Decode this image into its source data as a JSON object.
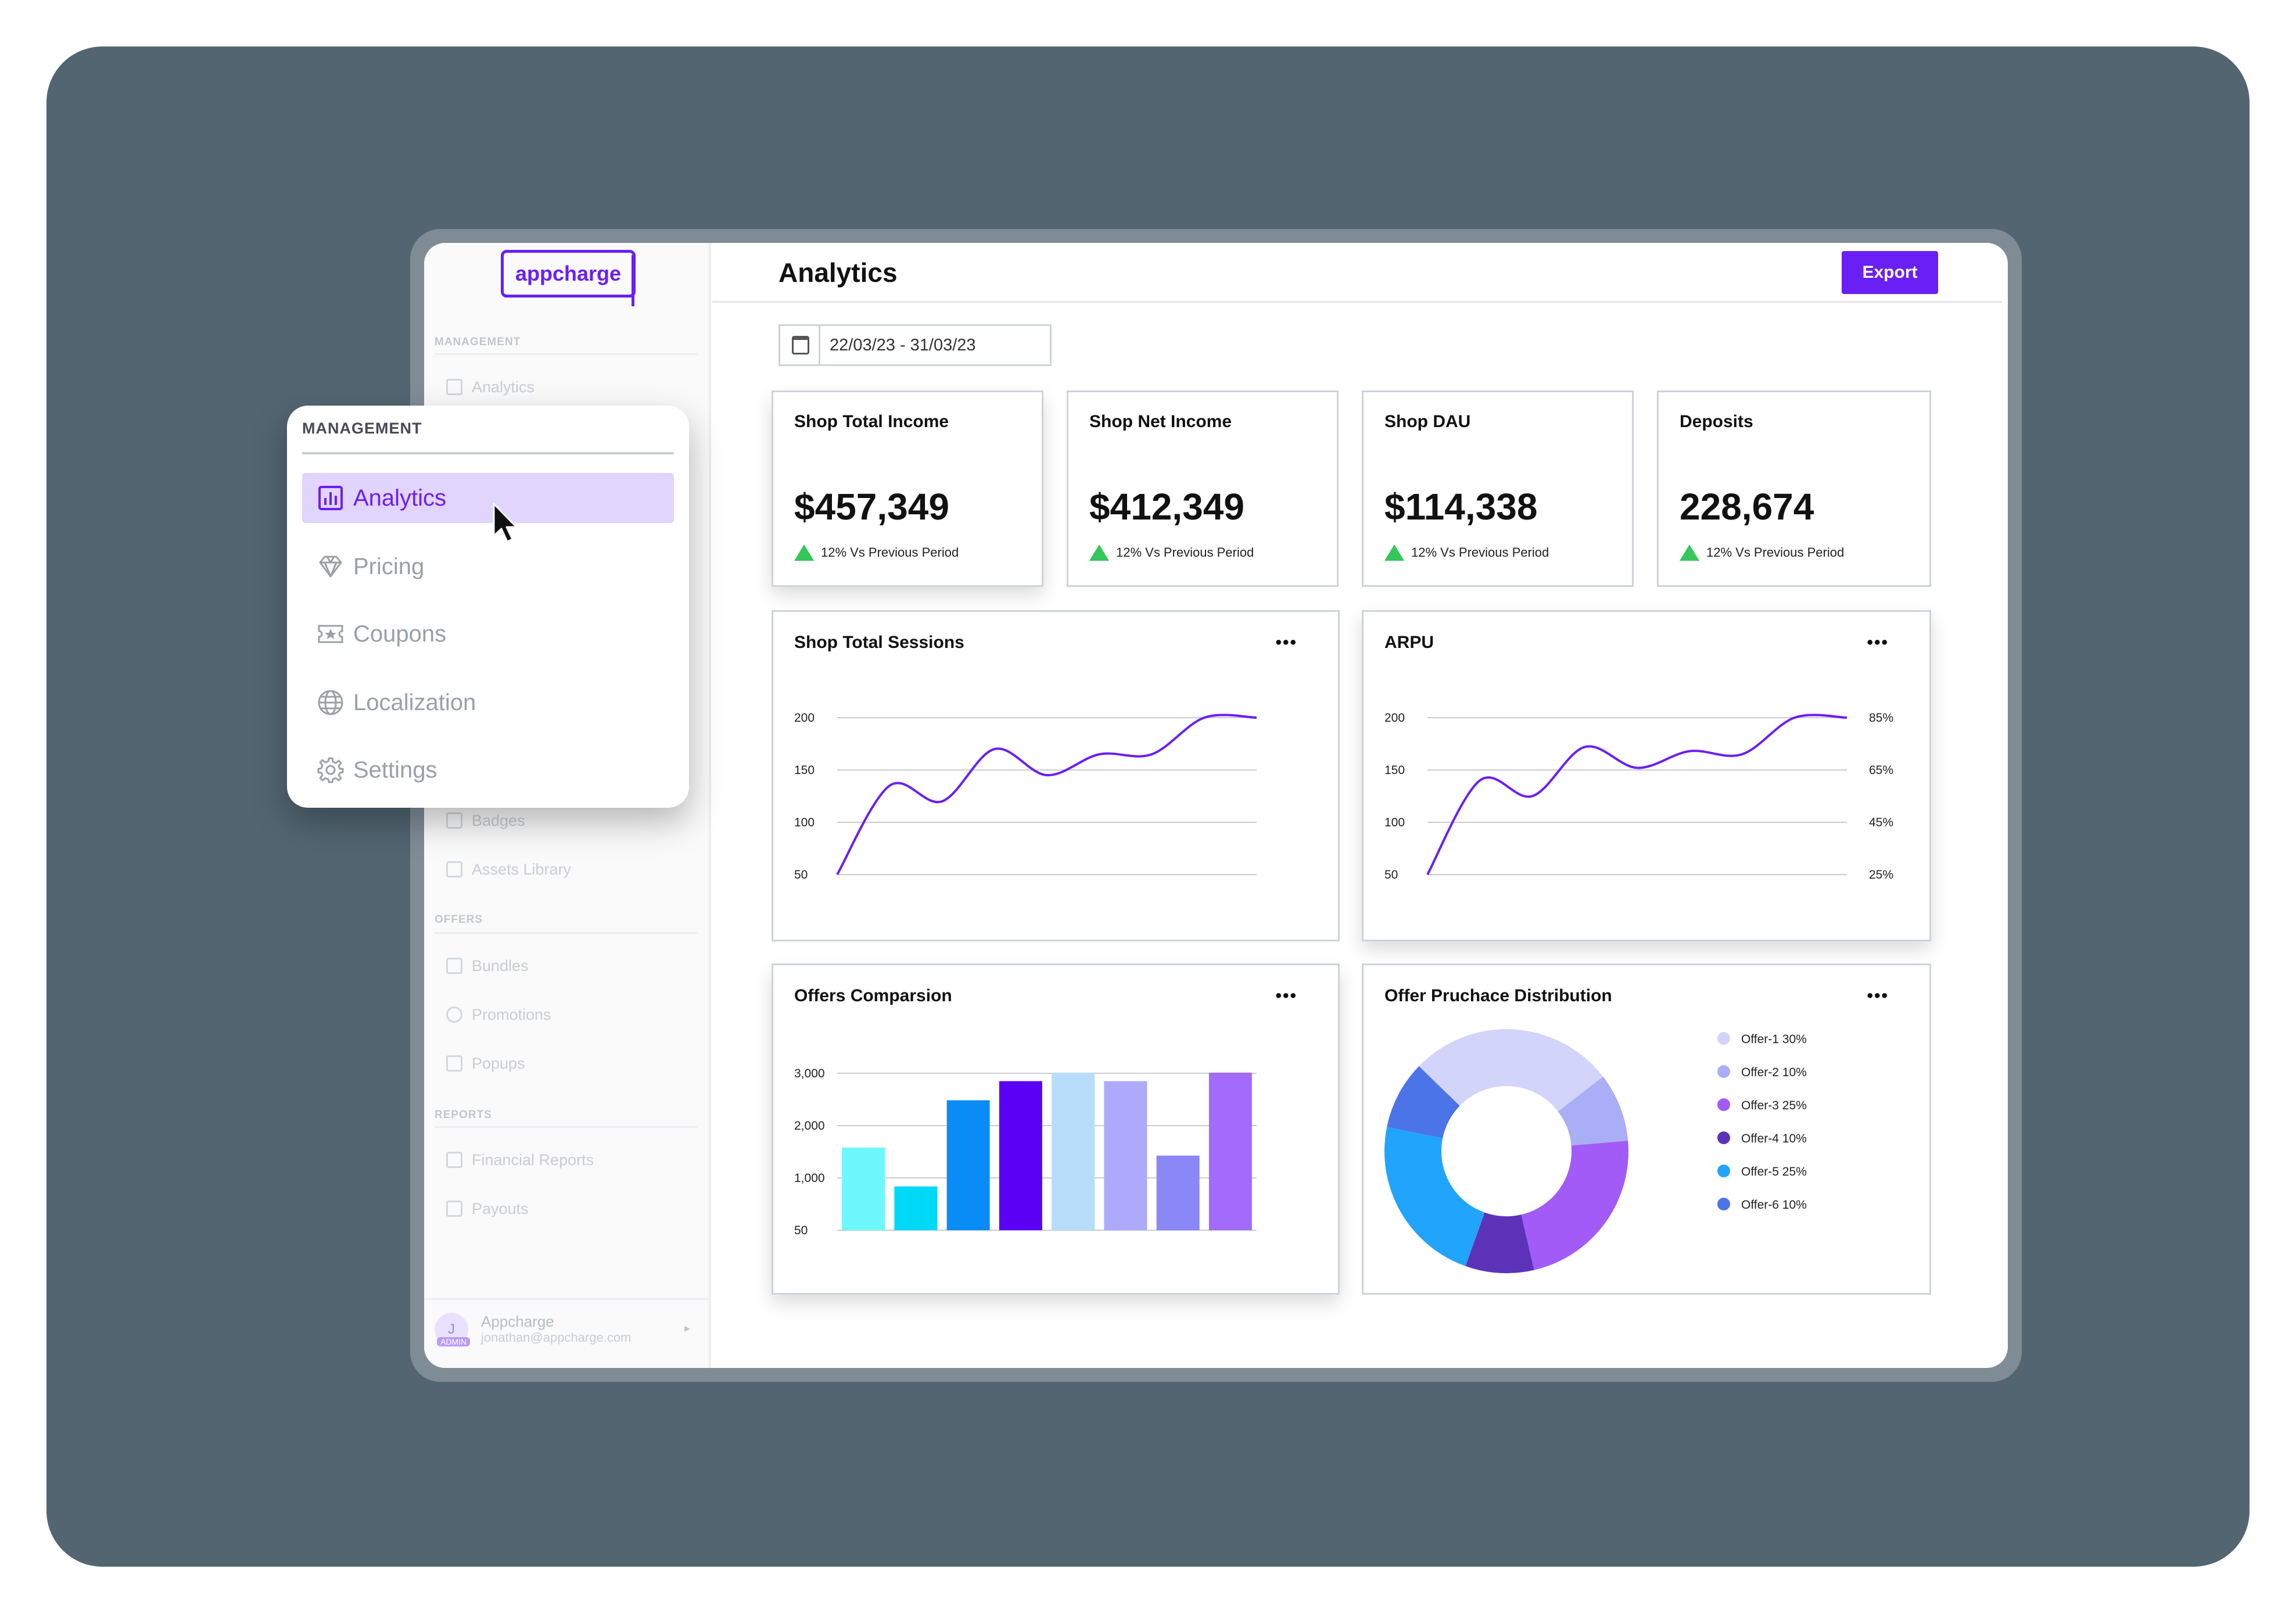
{
  "app": {
    "logo_text": "appcharge",
    "page_title": "Analytics",
    "export_label": "Export"
  },
  "date_range": "22/03/23 - 31/03/23",
  "sidebar": {
    "sections": {
      "management": "MANAGEMENT",
      "offers": "OFFERS",
      "reports": "REPORTS"
    },
    "items": {
      "analytics": "Analytics",
      "badges": "Badges",
      "assets_library": "Assets Library",
      "bundles": "Bundles",
      "promotions": "Promotions",
      "popups": "Popups",
      "financial_reports": "Financial Reports",
      "payouts": "Payouts"
    },
    "user": {
      "initial": "J",
      "role": "ADMIN",
      "name": "Appcharge",
      "email": "jonathan@appcharge.com"
    }
  },
  "popup_menu": {
    "title": "MANAGEMENT",
    "items": [
      {
        "label": "Analytics",
        "icon": "bar-chart-icon",
        "active": true
      },
      {
        "label": "Pricing",
        "icon": "diamond-icon",
        "active": false
      },
      {
        "label": "Coupons",
        "icon": "coupon-icon",
        "active": false
      },
      {
        "label": "Localization",
        "icon": "globe-icon",
        "active": false
      },
      {
        "label": "Settings",
        "icon": "gear-icon",
        "active": false
      }
    ]
  },
  "stats": [
    {
      "label": "Shop Total Income",
      "value": "$457,349",
      "trend": "12% Vs Previous Period"
    },
    {
      "label": "Shop Net Income",
      "value": "$412,349",
      "trend": "12% Vs Previous Period"
    },
    {
      "label": "Shop DAU",
      "value": "$114,338",
      "trend": "12% Vs Previous Period"
    },
    {
      "label": "Deposits",
      "value": "228,674",
      "trend": "12% Vs Previous Period"
    }
  ],
  "colors": {
    "accent": "#6a1ff5",
    "trend_up": "#34c759",
    "line": "#6a1ff5"
  },
  "chart_data": [
    {
      "type": "line",
      "title": "Shop Total Sessions",
      "y_ticks": [
        "200",
        "150",
        "100",
        "50"
      ],
      "ylim": [
        50,
        200
      ],
      "x": [
        0,
        1,
        2,
        3,
        4,
        5,
        6,
        7,
        8
      ],
      "values": [
        50,
        135,
        120,
        170,
        145,
        165,
        165,
        200,
        200
      ]
    },
    {
      "type": "line",
      "title": "ARPU",
      "y_ticks": [
        "200",
        "150",
        "100",
        "50"
      ],
      "y_ticks_right": [
        "85%",
        "65%",
        "45%",
        "25%"
      ],
      "ylim": [
        50,
        200
      ],
      "x": [
        0,
        1,
        2,
        3,
        4,
        5,
        6,
        7,
        8
      ],
      "values": [
        50,
        140,
        125,
        172,
        152,
        168,
        165,
        200,
        200
      ]
    },
    {
      "type": "bar",
      "title": "Offers Comparsion",
      "y_ticks": [
        "3,000",
        "2,000",
        "1,000",
        "50"
      ],
      "ylim": [
        50,
        3000
      ],
      "values": [
        1450,
        720,
        2340,
        2700,
        2860,
        2700,
        1300,
        2860
      ],
      "colors": [
        "#6ef7fc",
        "#00d8f7",
        "#0a8cf7",
        "#5b00f5",
        "#b8ddfb",
        "#aeaafb",
        "#8a87f7",
        "#a26bfb"
      ]
    },
    {
      "type": "pie",
      "title": "Offer Pruchace Distribution",
      "slices": [
        {
          "name": "Offer-1 30%",
          "value": 30,
          "color": "#d3d4fa"
        },
        {
          "name": "Offer-2 10%",
          "value": 10,
          "color": "#a9aef6"
        },
        {
          "name": "Offer-3 25%",
          "value": 25,
          "color": "#a25bf7"
        },
        {
          "name": "Offer-4 10%",
          "value": 10,
          "color": "#5c33b8"
        },
        {
          "name": "Offer-5 25%",
          "value": 25,
          "color": "#21a4fb"
        },
        {
          "name": "Offer-6 10%",
          "value": 10,
          "color": "#4a74e8"
        }
      ]
    }
  ]
}
